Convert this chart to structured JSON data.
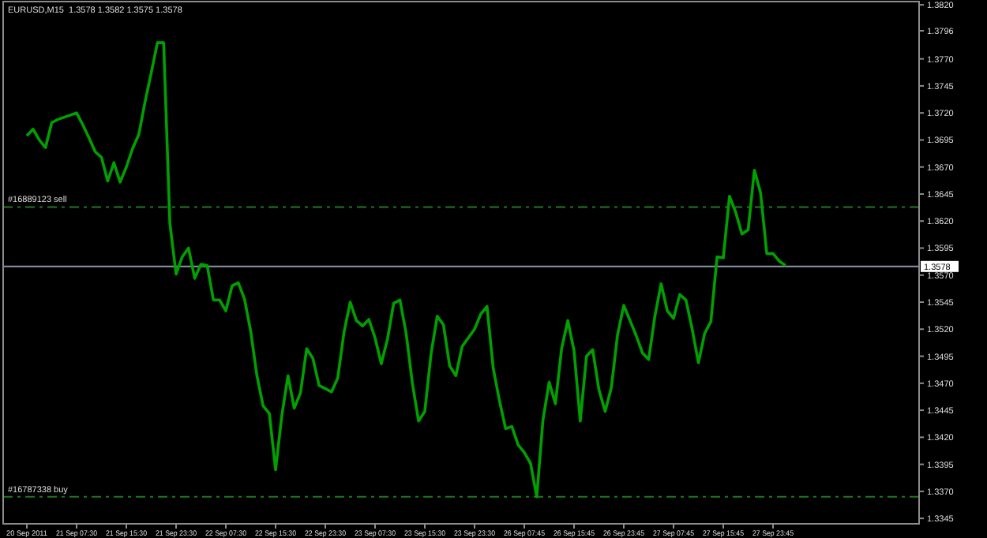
{
  "chart_data": {
    "type": "line",
    "title": "EURUSD,M15  1.3578 1.3582 1.3575 1.3578",
    "categories": [
      "20 Sep 2011",
      null,
      null,
      null,
      null,
      null,
      null,
      null,
      "21 Sep 07:30",
      null,
      null,
      null,
      null,
      null,
      null,
      null,
      "21 Sep 15:30",
      null,
      null,
      null,
      null,
      null,
      null,
      null,
      "21 Sep 23:30",
      null,
      null,
      null,
      null,
      null,
      null,
      null,
      "22 Sep 07:30",
      null,
      null,
      null,
      null,
      null,
      null,
      null,
      "22 Sep 15:30",
      null,
      null,
      null,
      null,
      null,
      null,
      null,
      "22 Sep 23:30",
      null,
      null,
      null,
      null,
      null,
      null,
      null,
      "23 Sep 07:30",
      null,
      null,
      null,
      null,
      null,
      null,
      null,
      "23 Sep 15:30",
      null,
      null,
      null,
      null,
      null,
      null,
      null,
      "23 Sep 23:30",
      null,
      null,
      null,
      null,
      null,
      null,
      null,
      "26 Sep 07:45",
      null,
      null,
      null,
      null,
      null,
      null,
      null,
      "26 Sep 15:45",
      null,
      null,
      null,
      null,
      null,
      null,
      null,
      "26 Sep 23:45",
      null,
      null,
      null,
      null,
      null,
      null,
      null,
      "27 Sep 07:45",
      null,
      null,
      null,
      null,
      null,
      null,
      null,
      "27 Sep 15:45",
      null,
      null,
      null,
      null,
      null,
      null,
      null,
      "27 Sep 23:45",
      null,
      null
    ],
    "series": [
      {
        "color": "#00a000",
        "values": [
          1.3699,
          1.3705,
          1.3695,
          1.3688,
          1.3711,
          1.3714,
          1.3716,
          1.3718,
          1.372,
          1.3709,
          1.3697,
          1.3684,
          1.3679,
          1.3657,
          1.3674,
          1.3656,
          1.367,
          1.3687,
          1.37,
          1.373,
          1.3757,
          1.3785,
          1.3785,
          1.3618,
          1.3571,
          1.3587,
          1.3595,
          1.3567,
          1.358,
          1.3579,
          1.3547,
          1.3547,
          1.3537,
          1.356,
          1.3563,
          1.3548,
          1.3518,
          1.3477,
          1.3449,
          1.3442,
          1.339,
          1.344,
          1.3477,
          1.3447,
          1.3461,
          1.3502,
          1.3493,
          1.3468,
          1.3465,
          1.3462,
          1.3475,
          1.3517,
          1.3545,
          1.3528,
          1.3523,
          1.3529,
          1.3512,
          1.3488,
          1.3511,
          1.3544,
          1.3547,
          1.3516,
          1.347,
          1.3435,
          1.3444,
          1.3497,
          1.3532,
          1.3524,
          1.3486,
          1.3477,
          1.3504,
          1.3512,
          1.352,
          1.3534,
          1.3541,
          1.3484,
          1.3454,
          1.3428,
          1.343,
          1.3413,
          1.3406,
          1.3396,
          1.3365,
          1.3436,
          1.3471,
          1.3451,
          1.3502,
          1.3528,
          1.35,
          1.3435,
          1.3495,
          1.3501,
          1.3464,
          1.3444,
          1.3466,
          1.3515,
          1.3542,
          1.3528,
          1.3514,
          1.3498,
          1.3492,
          1.3532,
          1.3562,
          1.3537,
          1.353,
          1.3552,
          1.3547,
          1.352,
          1.3489,
          1.3516,
          1.3527,
          1.3587,
          1.3586,
          1.3643,
          1.3628,
          1.3608,
          1.3612,
          1.3667,
          1.3646,
          1.359,
          1.359,
          1.3583,
          1.3579
        ]
      }
    ],
    "ylim": [
      1.334,
      1.3823
    ],
    "yticks": [
      {
        "value": 1.382,
        "label": "1.3820"
      },
      {
        "value": 1.3796,
        "label": "1.3796"
      },
      {
        "value": 1.377,
        "label": "1.3770"
      },
      {
        "value": 1.3745,
        "label": "1.3745"
      },
      {
        "value": 1.372,
        "label": "1.3720"
      },
      {
        "value": 1.3695,
        "label": "1.3695"
      },
      {
        "value": 1.367,
        "label": "1.3670"
      },
      {
        "value": 1.3645,
        "label": "1.3645"
      },
      {
        "value": 1.362,
        "label": "1.3620"
      },
      {
        "value": 1.3595,
        "label": "1.3595"
      },
      {
        "value": 1.357,
        "label": "1.3570"
      },
      {
        "value": 1.3545,
        "label": "1.3545"
      },
      {
        "value": 1.352,
        "label": "1.3520"
      },
      {
        "value": 1.3495,
        "label": "1.3495"
      },
      {
        "value": 1.347,
        "label": "1.3470"
      },
      {
        "value": 1.3445,
        "label": "1.3445"
      },
      {
        "value": 1.342,
        "label": "1.3420"
      },
      {
        "value": 1.3395,
        "label": "1.3395"
      },
      {
        "value": 1.337,
        "label": "1.3370"
      },
      {
        "value": 1.3345,
        "label": "1.3345"
      }
    ],
    "ref_lines": [
      {
        "axis": "y",
        "value": 1.3633,
        "label": "#16889123 sell",
        "color": "#1f7a1f",
        "line_style": "dashed"
      },
      {
        "axis": "y",
        "value": 1.3365,
        "label": "#16787338 buy",
        "color": "#1f7a1f",
        "line_style": "dashed"
      },
      {
        "axis": "y",
        "value": 1.3578,
        "label": "1.3578",
        "color": "#8a96a8",
        "line_style": "solid"
      }
    ],
    "grid": false,
    "marker": "none",
    "line_style": "solid"
  }
}
